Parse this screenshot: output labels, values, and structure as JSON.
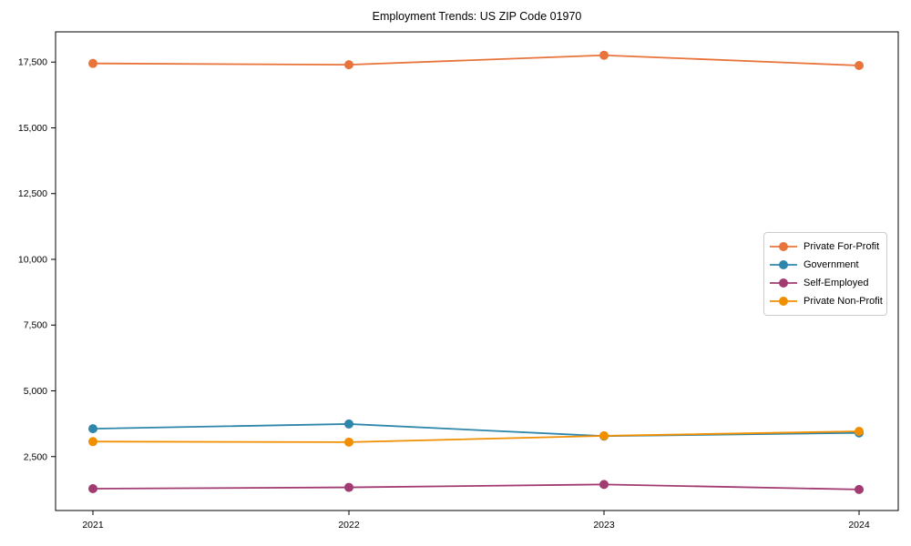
{
  "title": "Employment Trends: US ZIP Code 01970",
  "chart_data": {
    "type": "line",
    "title": "Employment Trends: US ZIP Code 01970",
    "x": [
      2021,
      2022,
      2023,
      2024
    ],
    "xtick_labels": [
      "2021",
      "2022",
      "2023",
      "2024"
    ],
    "yticks": [
      2500,
      5000,
      7500,
      10000,
      12500,
      15000,
      17500
    ],
    "ytick_labels": [
      "2,500",
      "5,000",
      "7,500",
      "10,000",
      "12,500",
      "15,000",
      "17,500"
    ],
    "ylim": [
      450,
      18650
    ],
    "xlabel": "",
    "ylabel": "",
    "grid": false,
    "legend_position": "center right",
    "marker": "circle",
    "series": [
      {
        "name": "Private For-Profit",
        "color": "#E8743B",
        "values": [
          17450,
          17400,
          17760,
          17370
        ]
      },
      {
        "name": "Government",
        "color": "#2E86AB",
        "values": [
          3560,
          3740,
          3280,
          3400
        ]
      },
      {
        "name": "Self-Employed",
        "color": "#A23B72",
        "values": [
          1280,
          1330,
          1440,
          1250
        ]
      },
      {
        "name": "Private Non-Profit",
        "color": "#F18F01",
        "values": [
          3070,
          3050,
          3290,
          3460
        ]
      }
    ]
  }
}
